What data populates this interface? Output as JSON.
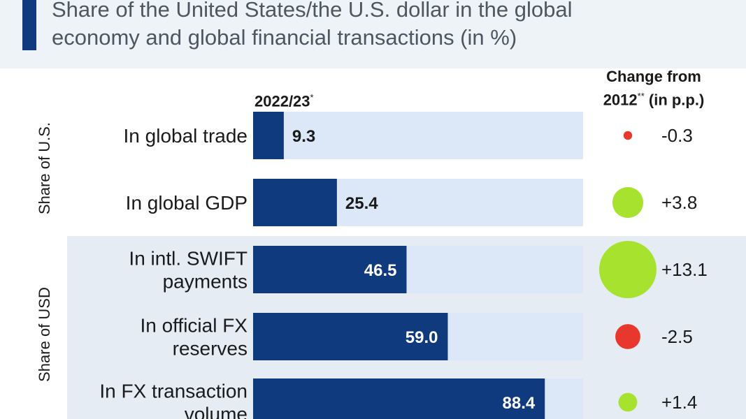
{
  "header": {
    "title_line1": "Share of the United States/the U.S. dollar in the global",
    "title_line2": "economy and global financial transactions (in %)"
  },
  "columns": {
    "year": "2022/23",
    "year_mark": "*",
    "change_line1": "Change from",
    "change_line2_prefix": "2012",
    "change_mark": "**",
    "change_line2_suffix": " (in p.p.)"
  },
  "groups": {
    "us": "Share of U.S.",
    "usd": "Share of USD"
  },
  "colors": {
    "bar": "#0f3a7d",
    "track": "#dce8f7",
    "positive": "#a6e22e",
    "negative": "#e8372c"
  },
  "chart_data": {
    "type": "bar",
    "orientation": "horizontal",
    "xlim": [
      0,
      100
    ],
    "categories": [
      [
        "In global trade"
      ],
      [
        "In global GDP"
      ],
      [
        "In intl. SWIFT",
        "payments"
      ],
      [
        "In official FX",
        "reserves"
      ],
      [
        "In FX transaction",
        "volume"
      ]
    ],
    "values": [
      9.3,
      25.4,
      46.5,
      59.0,
      88.4
    ],
    "value_labels": [
      "9.3",
      "25.4",
      "46.5",
      "59.0",
      "88.4"
    ],
    "change": [
      -0.3,
      3.8,
      13.1,
      -2.5,
      1.4
    ],
    "change_labels": [
      "-0.3",
      "+3.8",
      "+13.1",
      "-2.5",
      "+1.4"
    ]
  }
}
